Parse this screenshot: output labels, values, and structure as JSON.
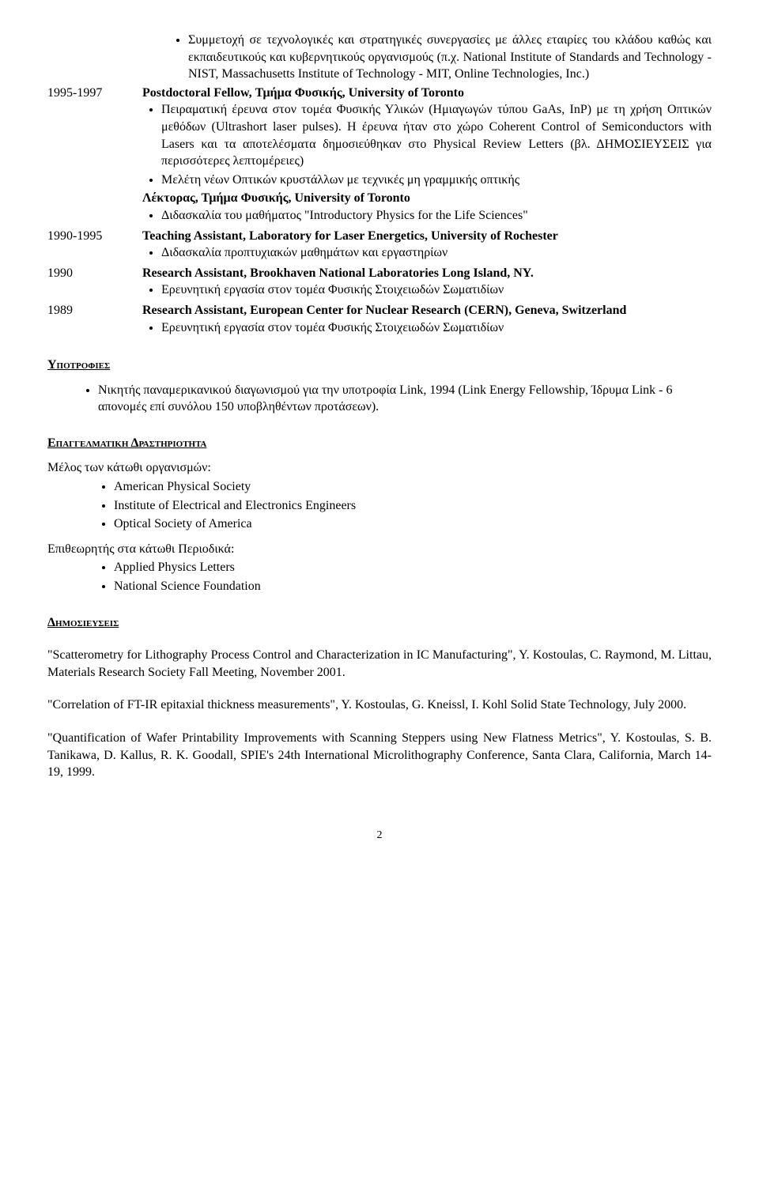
{
  "topBullets": [
    "Συμμετοχή σε τεχνολογικές και στρατηγικές συνεργασίες με άλλες εταιρίες του κλάδου καθώς και εκπαιδευτικούς και κυβερνητικούς οργανισμούς (π.χ. National Institute of Standards and Technology - NIST, Massachusetts Institute of Technology - MIT, Online Technologies, Inc.)"
  ],
  "exp": [
    {
      "dates": "1995-1997",
      "title": "Postdoctoral Fellow, Τμήμα Φυσικής, University of Toronto",
      "bullets": [
        "Πειραματική έρευνα στον τομέα Φυσικής Υλικών (Ημιαγωγών τύπου GaAs, InP) με τη χρήση Οπτικών μεθόδων (Ultrashort laser pulses). Η έρευνα ήταν στο χώρο Coherent Control of Semiconductors with Lasers και τα αποτελέσματα δημοσιεύθηκαν στο Physical Review Letters (βλ. ΔΗΜΟΣΙΕΥΣΕΙΣ για περισσότερες λεπτομέρειες)",
        "Μελέτη νέων Οπτικών κρυστάλλων με τεχνικές μη γραμμικής οπτικής"
      ],
      "subTitle": "Λέκτορας, Τμήμα Φυσικής, University of Toronto",
      "subBullets": [
        "Διδασκαλία του μαθήματος \"Introductory Physics for the Life Sciences\""
      ]
    },
    {
      "dates": "1990-1995",
      "title": "Teaching Assistant, Laboratory for Laser Energetics, University of Rochester",
      "bullets": [
        "Διδασκαλία προπτυχιακών μαθημάτων και εργαστηρίων"
      ]
    },
    {
      "dates": "1990",
      "title": "Research Assistant, Brookhaven National Laboratories Long Island, NY.",
      "bullets": [
        "Ερευνητική εργασία στον τομέα Φυσικής Στοιχειωδών Σωματιδίων"
      ]
    },
    {
      "dates": "1989",
      "title": "Research Assistant, European Center for Nuclear Research (CERN), Geneva, Switzerland",
      "bullets": [
        "Ερευνητική εργασία στον τομέα Φυσικής Στοιχειωδών Σωματιδίων"
      ]
    }
  ],
  "scholarshipsHeading": "Υποτροφιεσ",
  "scholarships": [
    "Νικητής παναμερικανικού διαγωνισμού για την υποτροφία Link, 1994 (Link Energy Fellowship, Ίδρυμα Link - 6 απονομές επί συνόλου 150 υποβληθέντων προτάσεων)."
  ],
  "profHeading": "Επαγγελματικη Δραστηριοτητα",
  "memberIntro": "Μέλος των κάτωθι οργανισμών:",
  "memberOrgs": [
    "American Physical Society",
    "Institute of Electrical and Electronics Engineers",
    "Optical Society of America"
  ],
  "reviewerIntro": "Επιθεωρητής στα κάτωθι Περιοδικά:",
  "reviewerOrgs": [
    "Applied Physics Letters",
    "National Science Foundation"
  ],
  "pubsHeading": "Δημοσιευσεισ",
  "publications": [
    "\"Scatterometry for Lithography Process Control and Characterization in IC Manufacturing\", Y. Kostoulas, C. Raymond, M. Littau, Materials Research Society Fall Meeting, November 2001.",
    "\"Correlation of FT-IR epitaxial thickness measurements\", Y. Kostoulas, G. Kneissl, I. Kohl Solid State Technology, July 2000.",
    "\"Quantification of Wafer Printability Improvements with Scanning Steppers using New Flatness Metrics\", Y. Kostoulas, S. B. Tanikawa, D. Kallus, R. K. Goodall, SPIE's 24th International Microlithography Conference, Santa Clara, California, March 14-19, 1999."
  ],
  "pageNumber": "2"
}
